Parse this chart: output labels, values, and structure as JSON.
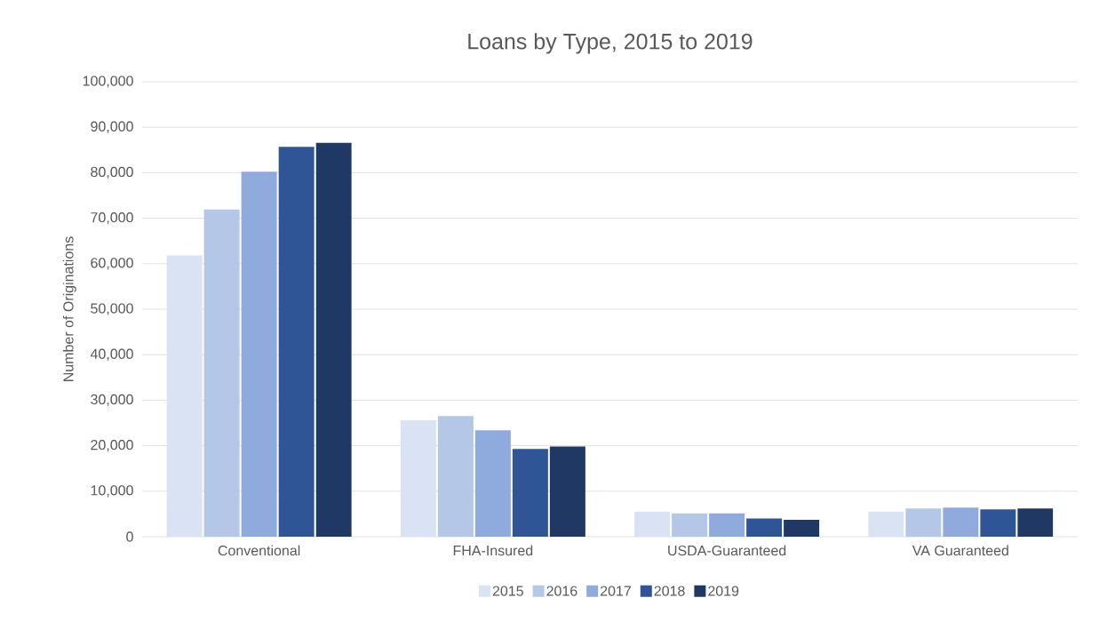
{
  "chart_data": {
    "type": "bar",
    "title": "Loans by Type, 2015 to 2019",
    "ylabel": "Number of Originations",
    "categories": [
      "Conventional",
      "FHA-Insured",
      "USDA-Guaranteed",
      "VA Guaranteed"
    ],
    "series": [
      {
        "name": "2015",
        "color": "#dae3f3",
        "values": [
          61800,
          25600,
          5500,
          5500
        ]
      },
      {
        "name": "2016",
        "color": "#b4c7e7",
        "values": [
          71900,
          26500,
          5100,
          6200
        ]
      },
      {
        "name": "2017",
        "color": "#8faadc",
        "values": [
          80200,
          23400,
          5100,
          6400
        ]
      },
      {
        "name": "2018",
        "color": "#2f5597",
        "values": [
          85700,
          19300,
          4000,
          6000
        ]
      },
      {
        "name": "2019",
        "color": "#203864",
        "values": [
          86600,
          19800,
          3700,
          6200
        ]
      }
    ],
    "ylim": [
      0,
      100000
    ],
    "yticks": [
      0,
      {
        "value": 10000,
        "label": "10,000"
      },
      {
        "value": 20000,
        "label": "20,000"
      },
      {
        "value": 30000,
        "label": "30,000"
      },
      {
        "value": 40000,
        "label": "40,000"
      },
      {
        "value": 50000,
        "label": "50,000"
      },
      {
        "value": 60000,
        "label": "60,000"
      },
      {
        "value": 70000,
        "label": "70,000"
      },
      {
        "value": 80000,
        "label": "80,000"
      },
      {
        "value": 90000,
        "label": "90,000"
      },
      {
        "value": 100000,
        "label": "100,000"
      }
    ],
    "grid": "y",
    "legend": "bottom"
  }
}
